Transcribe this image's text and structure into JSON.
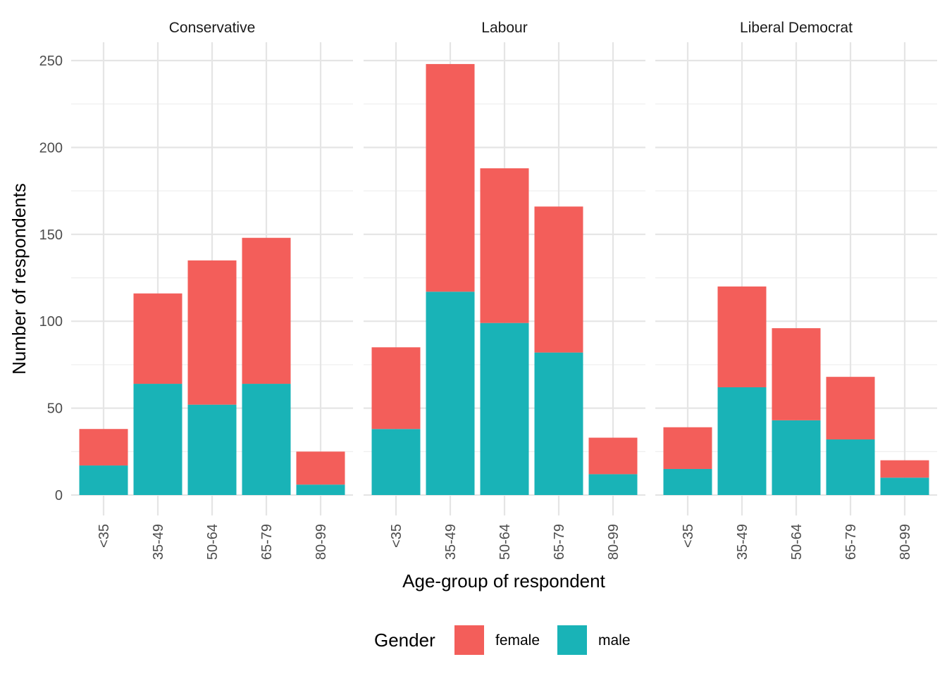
{
  "chart_data": {
    "type": "bar",
    "stacked": true,
    "xlabel": "Age-group of respondent",
    "ylabel": "Number of respondents",
    "ylim": [
      0,
      262
    ],
    "yticks": [
      0,
      50,
      100,
      150,
      200,
      250
    ],
    "categories": [
      "<35",
      "35-49",
      "50-64",
      "65-79",
      "80-99"
    ],
    "legend": {
      "title": "Gender",
      "position": "bottom",
      "entries": [
        {
          "name": "female",
          "color": "#F35E5A"
        },
        {
          "name": "male",
          "color": "#19B3B7"
        }
      ]
    },
    "panels": [
      {
        "title": "Conservative",
        "series": [
          {
            "name": "male",
            "values": [
              17,
              64,
              52,
              64,
              6
            ]
          },
          {
            "name": "female",
            "values": [
              21,
              52,
              83,
              84,
              19
            ]
          }
        ]
      },
      {
        "title": "Labour",
        "series": [
          {
            "name": "male",
            "values": [
              38,
              117,
              99,
              82,
              12
            ]
          },
          {
            "name": "female",
            "values": [
              47,
              131,
              89,
              84,
              21
            ]
          }
        ]
      },
      {
        "title": "Liberal Democrat",
        "series": [
          {
            "name": "male",
            "values": [
              15,
              62,
              43,
              32,
              10
            ]
          },
          {
            "name": "female",
            "values": [
              24,
              58,
              53,
              36,
              10
            ]
          }
        ]
      }
    ]
  }
}
